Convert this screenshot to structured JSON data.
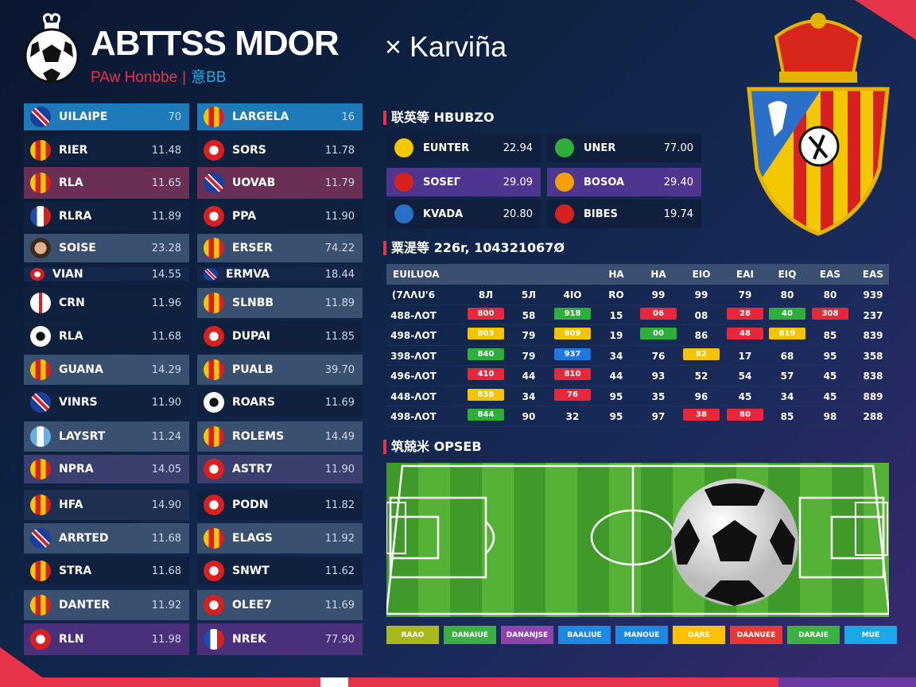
{
  "header": {
    "title": "ABTTSS MDOR",
    "title_suffix": "× Karviña",
    "subtitle_a": "PAw Honbbe",
    "subtitle_sep": "|",
    "subtitle_b": "意BB"
  },
  "colors": {
    "accent": "#e8344a",
    "blue_row": "#1e7ab8",
    "maroon_row": "#6a2f55",
    "slate_row": "#3a5070",
    "dark_row": "#10203f",
    "purple_row": "#4a2f7a"
  },
  "left_list": [
    {
      "name": "UILAIPE",
      "value": "70",
      "style": "blue",
      "icon": "uk-flag-icon"
    },
    {
      "name": "RIER",
      "value": "11.48",
      "style": "dark",
      "icon": "crest-icon"
    },
    {
      "name": "RLA",
      "value": "11.65",
      "style": "maroon",
      "icon": "crest-icon"
    },
    {
      "name": "RLRA",
      "value": "11.89",
      "style": "dark",
      "icon": "france-flag-icon"
    },
    {
      "name": "SOISE",
      "value": "23.28",
      "style": "slate",
      "icon": "avatar-icon"
    },
    {
      "name": "VIAN",
      "value": "14.55",
      "style": "thin",
      "icon": "badge-icon"
    },
    {
      "name": "CRN",
      "value": "11.96",
      "style": "dark",
      "icon": "england-flag-icon"
    },
    {
      "name": "RLA",
      "value": "11.68",
      "style": "dark",
      "icon": "soccer-ball-icon"
    },
    {
      "name": "GUANA",
      "value": "14.29",
      "style": "slate",
      "icon": "crest-icon"
    },
    {
      "name": "VINRS",
      "value": "11.90",
      "style": "dark",
      "icon": "uk-flag-icon"
    },
    {
      "name": "LAYSRT",
      "value": "11.24",
      "style": "slate",
      "icon": "flag-icon"
    },
    {
      "name": "NPRA",
      "value": "14.05",
      "style": "pslate",
      "icon": "crest-icon"
    },
    {
      "name": "HFA",
      "value": "14.90",
      "style": "dslate",
      "icon": "crest-icon"
    },
    {
      "name": "ARRTED",
      "value": "11.68",
      "style": "slate",
      "icon": "uk-flag-icon"
    },
    {
      "name": "STRA",
      "value": "11.68",
      "style": "dark",
      "icon": "crest-icon"
    },
    {
      "name": "DANTER",
      "value": "11.92",
      "style": "slate",
      "icon": "crest-icon"
    },
    {
      "name": "RLN",
      "value": "11.98",
      "style": "purple",
      "icon": "badge-icon"
    }
  ],
  "right_list": [
    {
      "name": "LARGELA",
      "value": "16",
      "style": "blue",
      "icon": "crest-icon"
    },
    {
      "name": "SORS",
      "value": "11.78",
      "style": "dark",
      "icon": "badge-icon"
    },
    {
      "name": "UOVAB",
      "value": "11.79",
      "style": "maroon",
      "icon": "uk-flag-icon"
    },
    {
      "name": "PPA",
      "value": "11.90",
      "style": "dark",
      "icon": "badge-icon"
    },
    {
      "name": "ERSER",
      "value": "74.22",
      "style": "slate",
      "icon": "crest-icon"
    },
    {
      "name": "ERMVA",
      "value": "18.44",
      "style": "thin",
      "icon": "uk-flag-icon"
    },
    {
      "name": "SLNBB",
      "value": "11.89",
      "style": "slate",
      "icon": "crest-icon"
    },
    {
      "name": "DUPAI",
      "value": "11.85",
      "style": "dark",
      "icon": "badge-icon"
    },
    {
      "name": "PUALB",
      "value": "39.70",
      "style": "slate",
      "icon": "crest-icon"
    },
    {
      "name": "ROARS",
      "value": "11.69",
      "style": "dark",
      "icon": "soccer-ball-icon"
    },
    {
      "name": "ROLEMS",
      "value": "14.49",
      "style": "slate",
      "icon": "crest-icon"
    },
    {
      "name": "ASTR7",
      "value": "11.90",
      "style": "pslate",
      "icon": "badge-icon"
    },
    {
      "name": "PODN",
      "value": "11.82",
      "style": "dark",
      "icon": "badge-icon"
    },
    {
      "name": "ELAGS",
      "value": "11.92",
      "style": "slate",
      "icon": "crest-icon"
    },
    {
      "name": "SNWT",
      "value": "11.62",
      "style": "dark",
      "icon": "badge-icon"
    },
    {
      "name": "OLEE7",
      "value": "11.69",
      "style": "slate",
      "icon": "badge-icon"
    },
    {
      "name": "NREK",
      "value": "77.90",
      "style": "purple",
      "icon": "france-flag-icon"
    }
  ],
  "section1": {
    "title": "联英等 HBUBZO"
  },
  "mini_cards": [
    {
      "name": "EUNTER",
      "value": "22.94",
      "highlight": false
    },
    {
      "name": "UNER",
      "value": "77.00",
      "highlight": false
    },
    {
      "name": "SOSEΓ",
      "value": "29.09",
      "highlight": true
    },
    {
      "name": "BOSOA",
      "value": "29.40",
      "highlight": true
    },
    {
      "name": "KVADA",
      "value": "20.80",
      "highlight": false
    },
    {
      "name": "BIBES",
      "value": "19.74",
      "highlight": false
    }
  ],
  "section2": {
    "title": "粟湜等 226r, 104321067Ø"
  },
  "table": {
    "headers": [
      "EUILUOA",
      "",
      "",
      "",
      "HA",
      "HA",
      "EIO",
      "EAI",
      "EIQ",
      "EAS",
      "EAS"
    ],
    "rows": [
      {
        "cells": [
          "(7ΛΛU'6",
          "8Л",
          "5Л",
          "4IO",
          "RO",
          "99",
          "99",
          "79",
          "80",
          "80",
          "939"
        ],
        "pills": [
          null,
          null,
          null,
          null,
          null,
          null,
          null,
          null,
          null,
          null,
          null
        ]
      },
      {
        "cells": [
          "488-ΛOT",
          "800",
          "58",
          "918",
          "15",
          "06",
          "08",
          "28",
          "40",
          "308",
          "237"
        ],
        "pills": [
          null,
          "red",
          null,
          "green",
          null,
          "red",
          null,
          "red",
          "green",
          "red",
          null
        ]
      },
      {
        "cells": [
          "498-ΛOT",
          "803",
          "79",
          "809",
          "19",
          "00",
          "86",
          "48",
          "819",
          "85",
          "839"
        ],
        "pills": [
          null,
          "yellow",
          null,
          "yellow",
          null,
          "green",
          null,
          "red",
          "yellow",
          null,
          null
        ]
      },
      {
        "cells": [
          "398-ΛOT",
          "840",
          "79",
          "937",
          "34",
          "76",
          "82",
          "17",
          "68",
          "95",
          "358"
        ],
        "pills": [
          null,
          "green",
          null,
          "blue",
          null,
          null,
          "yellow",
          null,
          null,
          null,
          null
        ]
      },
      {
        "cells": [
          "496-ΛOT",
          "410",
          "44",
          "810",
          "44",
          "93",
          "52",
          "54",
          "57",
          "45",
          "838"
        ],
        "pills": [
          null,
          "red",
          null,
          "red",
          null,
          null,
          null,
          null,
          null,
          null,
          null
        ]
      },
      {
        "cells": [
          "448-ΛOT",
          "838",
          "34",
          "76",
          "95",
          "35",
          "96",
          "45",
          "34",
          "45",
          "889"
        ],
        "pills": [
          null,
          "yellow",
          null,
          "red",
          null,
          null,
          null,
          null,
          null,
          null,
          null
        ]
      },
      {
        "cells": [
          "498-ΛOT",
          "844",
          "90",
          "32",
          "95",
          "97",
          "38",
          "80",
          "85",
          "98",
          "288"
        ],
        "pills": [
          null,
          "green",
          null,
          null,
          null,
          null,
          "red",
          "red",
          null,
          null,
          null
        ]
      }
    ],
    "pill_colors": {
      "red": "#e8283a",
      "green": "#2fae3a",
      "yellow": "#f5c400",
      "blue": "#1f78e0"
    }
  },
  "section3": {
    "title": "筑兢米 OPSEB"
  },
  "bottom_buttons": [
    {
      "label": "RAAO",
      "color": "#a8b820"
    },
    {
      "label": "DANAIUE",
      "color": "#3cb043"
    },
    {
      "label": "DANANJSE",
      "color": "#8e44ad"
    },
    {
      "label": "BAALIUE",
      "color": "#1e88e5"
    },
    {
      "label": "MANOUE",
      "color": "#1e88e5"
    },
    {
      "label": "DARE",
      "color": "#ffc107"
    },
    {
      "label": "DAANUEE",
      "color": "#e53935"
    },
    {
      "label": "DARAIE",
      "color": "#3cb043"
    },
    {
      "label": "MUE",
      "color": "#1ea7e8"
    }
  ]
}
